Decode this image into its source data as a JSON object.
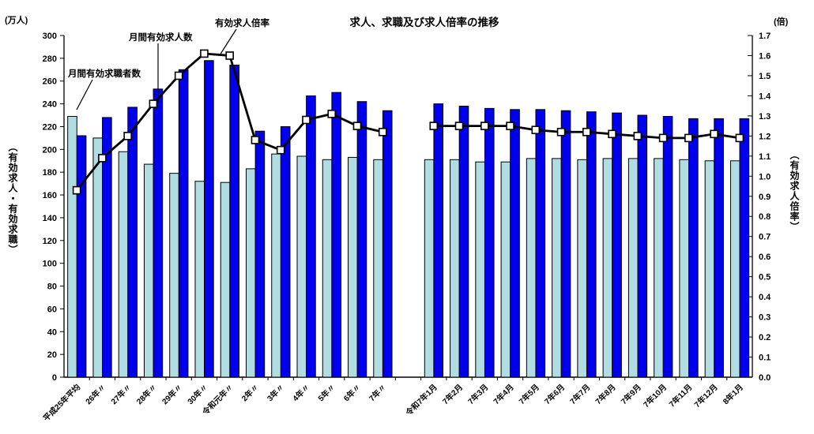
{
  "chart_data": {
    "type": "bar+line",
    "title": "求人、求職及び求人倍率の推移",
    "left_axis": {
      "unit": "(万人)",
      "label": "（有効求人・有効求職）",
      "min": 0,
      "max": 300,
      "step": 20
    },
    "right_axis": {
      "unit": "(倍)",
      "label": "（有効求人倍率）",
      "min": 0,
      "max": 1.7,
      "step": 0.1
    },
    "legend_position": "annotations-top-left",
    "grid": false,
    "gap_after_index": 12,
    "annotation_color": "#0000FF",
    "categories": [
      "平成25年平均",
      "26年〃",
      "27年〃",
      "28年〃",
      "29年〃",
      "30年〃",
      "令和元年〃",
      "2年〃",
      "3年〃",
      "4年〃",
      "5年〃",
      "6年〃",
      "7年〃",
      "令和7年1月",
      "7年2月",
      "7年3月",
      "7年4月",
      "7年5月",
      "7年6月",
      "7年7月",
      "7年8月",
      "7年9月",
      "7年10月",
      "7年11月",
      "7年12月",
      "8年1月"
    ],
    "series": [
      {
        "name": "月間有効求職者数",
        "type": "bar",
        "axis": "left",
        "color": "#B0DCE2",
        "values": [
          229,
          210,
          198,
          187,
          179,
          172,
          171,
          183,
          196,
          194,
          191,
          193,
          191,
          191,
          191,
          189,
          189,
          192,
          192,
          191,
          192,
          192,
          192,
          191,
          190,
          190
        ]
      },
      {
        "name": "月間有効求人数",
        "type": "bar",
        "axis": "left",
        "color": "#0000EE",
        "values": [
          212,
          228,
          237,
          253,
          270,
          278,
          274,
          216,
          220,
          247,
          250,
          242,
          234,
          240,
          238,
          236,
          235,
          235,
          234,
          233,
          232,
          230,
          229,
          227,
          227,
          227
        ]
      },
      {
        "name": "有効求人倍率",
        "type": "line",
        "axis": "right",
        "color": "#000000",
        "marker_fill": "#FFFFFF",
        "values": [
          0.93,
          1.09,
          1.2,
          1.36,
          1.5,
          1.61,
          1.6,
          1.18,
          1.13,
          1.28,
          1.31,
          1.25,
          1.22,
          1.25,
          1.25,
          1.25,
          1.25,
          1.23,
          1.22,
          1.22,
          1.21,
          1.2,
          1.19,
          1.19,
          1.21,
          1.19
        ]
      }
    ]
  }
}
